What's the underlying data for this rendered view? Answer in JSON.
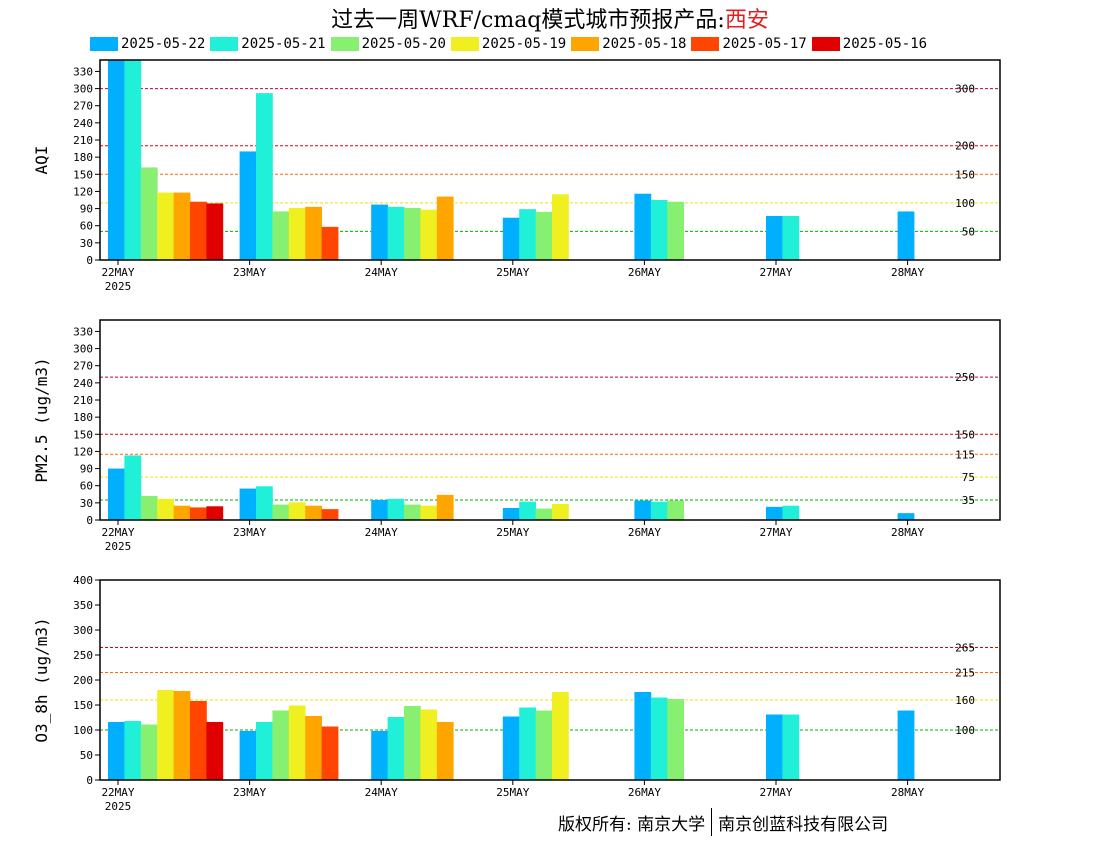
{
  "title": {
    "prefix": "过去一周WRF/cmaq模式城市预报产品:",
    "city": "西安"
  },
  "legend": [
    {
      "label": "2025-05-22",
      "color": "#00b0ff"
    },
    {
      "label": "2025-05-21",
      "color": "#20f0d8"
    },
    {
      "label": "2025-05-20",
      "color": "#88f070"
    },
    {
      "label": "2025-05-19",
      "color": "#f0f020"
    },
    {
      "label": "2025-05-18",
      "color": "#ffa500"
    },
    {
      "label": "2025-05-17",
      "color": "#ff4500"
    },
    {
      "label": "2025-05-16",
      "color": "#e00000"
    }
  ],
  "copyright": {
    "left": "版权所有: 南京大学",
    "right": "南京创蓝科技有限公司"
  },
  "chart_data": [
    {
      "type": "bar",
      "ylabel": "AQI",
      "categories": [
        "22MAY",
        "23MAY",
        "24MAY",
        "25MAY",
        "26MAY",
        "27MAY",
        "28MAY"
      ],
      "year_label": "2025",
      "ylim": [
        0,
        350
      ],
      "yticks": [
        0,
        30,
        60,
        90,
        120,
        150,
        180,
        210,
        240,
        270,
        300,
        330
      ],
      "thresholds": [
        {
          "value": 300,
          "label": "300",
          "color": "#c00040"
        },
        {
          "value": 200,
          "label": "200",
          "color": "#e00000"
        },
        {
          "value": 150,
          "label": "150",
          "color": "#ff6a00"
        },
        {
          "value": 100,
          "label": "100",
          "color": "#f0e000"
        },
        {
          "value": 50,
          "label": "50",
          "color": "#00b000"
        }
      ],
      "series": [
        {
          "name": "2025-05-22",
          "values": [
            350,
            190,
            97,
            74,
            116,
            77,
            85
          ]
        },
        {
          "name": "2025-05-21",
          "values": [
            350,
            292,
            93,
            89,
            105,
            77,
            null
          ]
        },
        {
          "name": "2025-05-20",
          "values": [
            162,
            85,
            91,
            84,
            102,
            null,
            null
          ]
        },
        {
          "name": "2025-05-19",
          "values": [
            118,
            91,
            88,
            115,
            null,
            null,
            null
          ]
        },
        {
          "name": "2025-05-18",
          "values": [
            118,
            93,
            111,
            null,
            null,
            null,
            null
          ]
        },
        {
          "name": "2025-05-17",
          "values": [
            102,
            58,
            null,
            null,
            null,
            null,
            null
          ]
        },
        {
          "name": "2025-05-16",
          "values": [
            99,
            null,
            null,
            null,
            null,
            null,
            null
          ]
        }
      ]
    },
    {
      "type": "bar",
      "ylabel": "PM2.5 (ug/m3)",
      "categories": [
        "22MAY",
        "23MAY",
        "24MAY",
        "25MAY",
        "26MAY",
        "27MAY",
        "28MAY"
      ],
      "year_label": "2025",
      "ylim": [
        0,
        350
      ],
      "yticks": [
        0,
        30,
        60,
        90,
        120,
        150,
        180,
        210,
        240,
        270,
        300,
        330
      ],
      "thresholds": [
        {
          "value": 250,
          "label": "250",
          "color": "#c00040"
        },
        {
          "value": 150,
          "label": "150",
          "color": "#e00000"
        },
        {
          "value": 115,
          "label": "115",
          "color": "#ff6a00"
        },
        {
          "value": 75,
          "label": "75",
          "color": "#f0e000"
        },
        {
          "value": 35,
          "label": "35",
          "color": "#00b000"
        }
      ],
      "series": [
        {
          "name": "2025-05-22",
          "values": [
            90,
            55,
            35,
            21,
            34,
            23,
            12
          ]
        },
        {
          "name": "2025-05-21",
          "values": [
            113,
            59,
            37,
            32,
            32,
            25,
            null
          ]
        },
        {
          "name": "2025-05-20",
          "values": [
            42,
            27,
            27,
            20,
            34,
            null,
            null
          ]
        },
        {
          "name": "2025-05-19",
          "values": [
            37,
            31,
            25,
            28,
            null,
            null,
            null
          ]
        },
        {
          "name": "2025-05-18",
          "values": [
            25,
            25,
            44,
            null,
            null,
            null,
            null
          ]
        },
        {
          "name": "2025-05-17",
          "values": [
            22,
            19,
            null,
            null,
            null,
            null,
            null
          ]
        },
        {
          "name": "2025-05-16",
          "values": [
            24,
            null,
            null,
            null,
            null,
            null,
            null
          ]
        }
      ]
    },
    {
      "type": "bar",
      "ylabel": "O3_8h (ug/m3)",
      "categories": [
        "22MAY",
        "23MAY",
        "24MAY",
        "25MAY",
        "26MAY",
        "27MAY",
        "28MAY"
      ],
      "year_label": "2025",
      "ylim": [
        0,
        400
      ],
      "yticks": [
        0,
        50,
        100,
        150,
        200,
        250,
        300,
        350,
        400
      ],
      "thresholds": [
        {
          "value": 265,
          "label": "265",
          "color": "#e00000"
        },
        {
          "value": 215,
          "label": "215",
          "color": "#ff6a00"
        },
        {
          "value": 160,
          "label": "160",
          "color": "#f0e000"
        },
        {
          "value": 100,
          "label": "100",
          "color": "#00b000"
        }
      ],
      "series": [
        {
          "name": "2025-05-22",
          "values": [
            116,
            98,
            98,
            127,
            176,
            131,
            139
          ]
        },
        {
          "name": "2025-05-21",
          "values": [
            118,
            116,
            126,
            145,
            165,
            131,
            null
          ]
        },
        {
          "name": "2025-05-20",
          "values": [
            111,
            139,
            148,
            139,
            162,
            null,
            null
          ]
        },
        {
          "name": "2025-05-19",
          "values": [
            180,
            149,
            141,
            176,
            null,
            null,
            null
          ]
        },
        {
          "name": "2025-05-18",
          "values": [
            178,
            128,
            116,
            null,
            null,
            null,
            null
          ]
        },
        {
          "name": "2025-05-17",
          "values": [
            158,
            107,
            null,
            null,
            null,
            null,
            null
          ]
        },
        {
          "name": "2025-05-16",
          "values": [
            116,
            null,
            null,
            null,
            null,
            null,
            null
          ]
        }
      ]
    }
  ]
}
